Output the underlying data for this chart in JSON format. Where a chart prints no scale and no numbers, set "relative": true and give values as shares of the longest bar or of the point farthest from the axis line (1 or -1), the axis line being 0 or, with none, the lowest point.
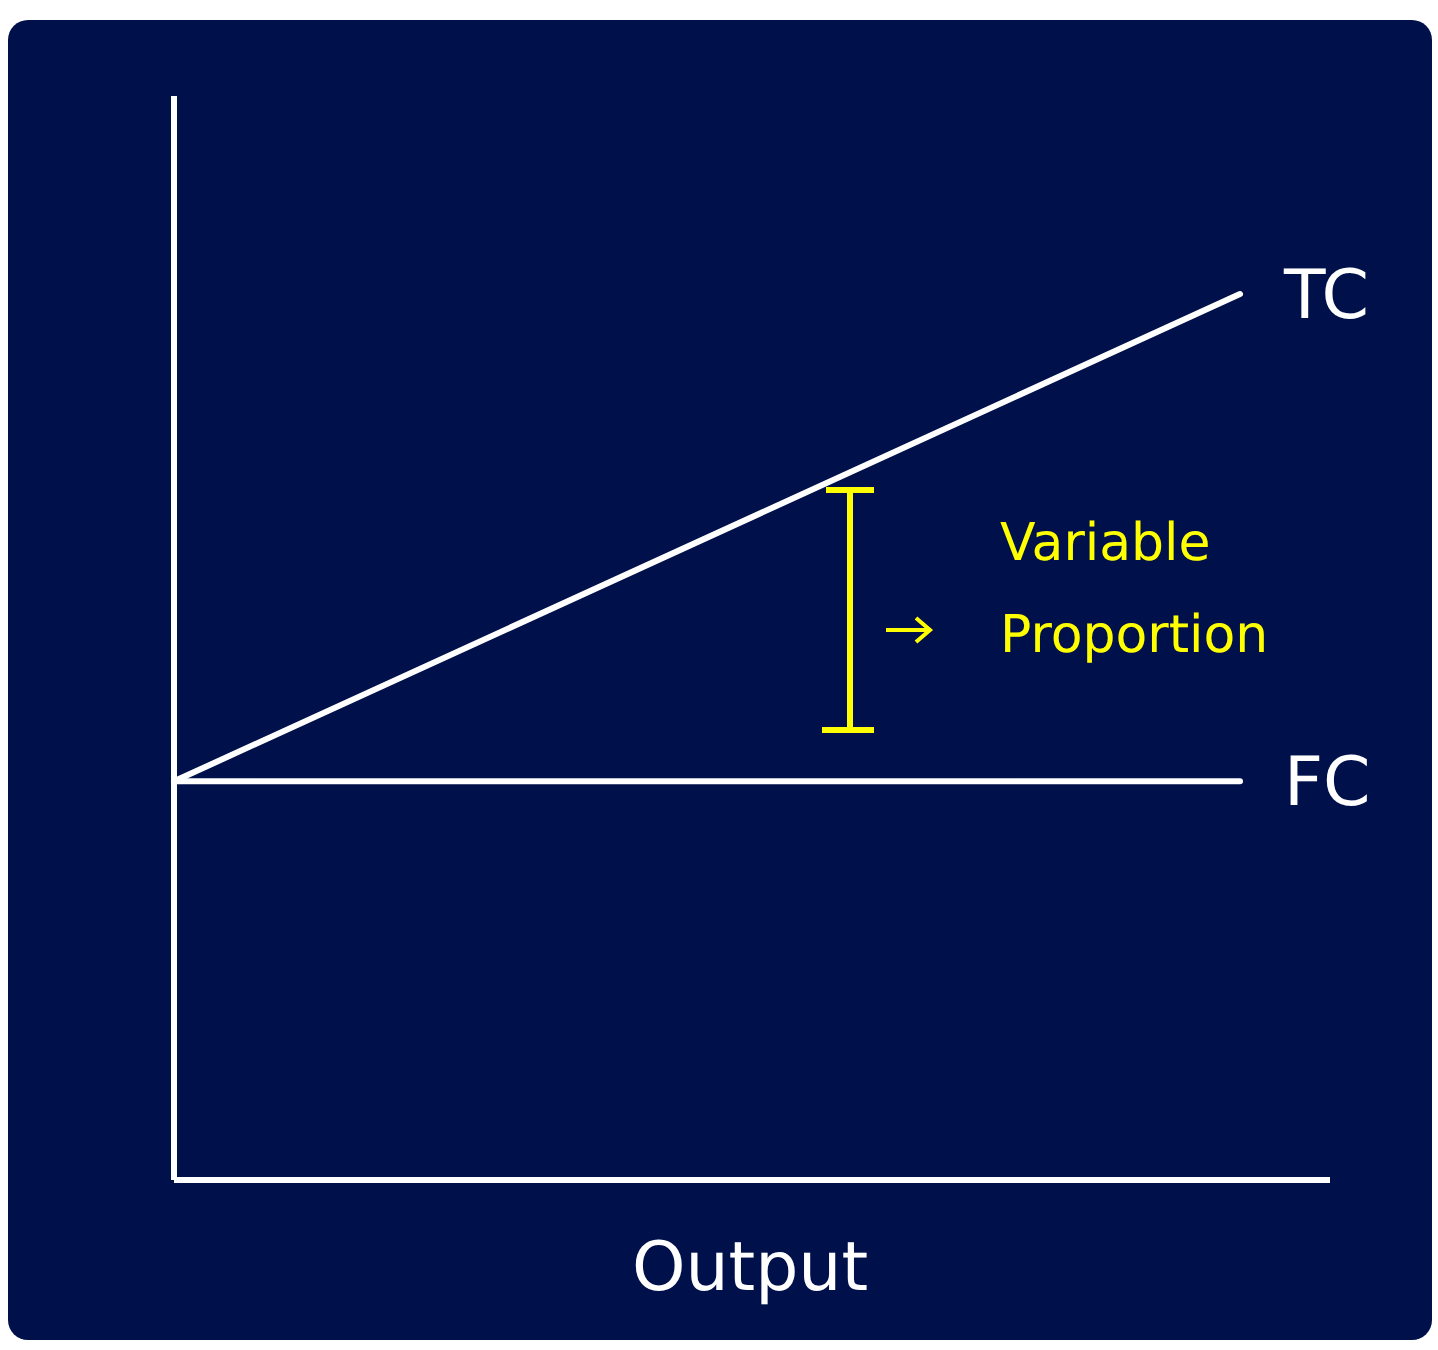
{
  "chart_data": {
    "type": "line",
    "relative": true,
    "xlabel": "Output",
    "categories": [
      null,
      null
    ],
    "series": [
      {
        "name": "TC",
        "color": "#ffffff",
        "values": [
          0.45,
          1
        ]
      },
      {
        "name": "FC",
        "color": "#ffffff",
        "values": [
          0.45,
          0.45
        ]
      }
    ],
    "annotations": [
      "Variable Proportion"
    ],
    "ref_lines": [
      {
        "axis": "y",
        "value": 0,
        "color": "#ffffff",
        "line_style": "solid"
      }
    ],
    "legend": false,
    "marker": "none",
    "line_style": "solid"
  }
}
